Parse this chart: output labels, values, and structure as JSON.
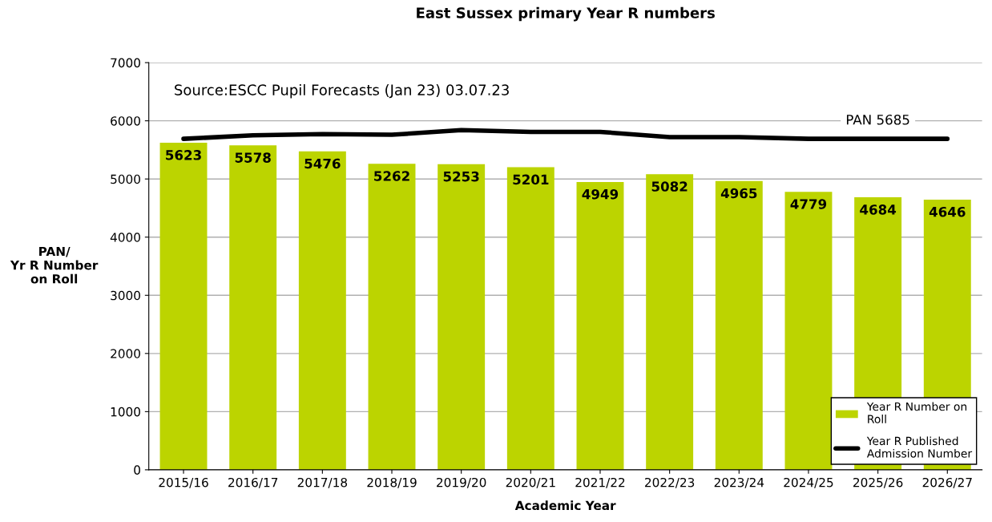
{
  "chart_data": {
    "type": "bar",
    "title": "East Sussex primary Year R numbers",
    "xlabel": "Academic Year",
    "ylabel": "PAN/\nYr R Number\non Roll",
    "categories": [
      "2015/16",
      "2016/17",
      "2017/18",
      "2018/19",
      "2019/20",
      "2020/21",
      "2021/22",
      "2022/23",
      "2023/24",
      "2024/25",
      "2025/26",
      "2026/27"
    ],
    "series": [
      {
        "name": "Year R Number on Roll",
        "color": "#bcd400",
        "values": [
          5623,
          5578,
          5476,
          5262,
          5253,
          5201,
          4949,
          5082,
          4965,
          4779,
          4684,
          4646
        ],
        "value_labels": [
          "5623",
          "5578",
          "5476",
          "5262",
          "5253",
          "5201",
          "4949",
          "5082",
          "4965",
          "4779",
          "4684",
          "4646"
        ]
      },
      {
        "name": "Year R Published Admission Number",
        "type": "line",
        "color": "#000000",
        "values": [
          5690,
          5750,
          5770,
          5760,
          5840,
          5810,
          5810,
          5720,
          5720,
          5690,
          5690,
          5690
        ]
      }
    ],
    "ylim": [
      0,
      7000
    ],
    "yticks": [
      0,
      1000,
      2000,
      3000,
      4000,
      5000,
      6000,
      7000
    ],
    "grid": "y",
    "legend": "bottom right",
    "marker": "none",
    "line_style": "solid",
    "annotations": [
      "Source:ESCC Pupil Forecasts (Jan 23) 03.07.23",
      "PAN 5685"
    ]
  }
}
